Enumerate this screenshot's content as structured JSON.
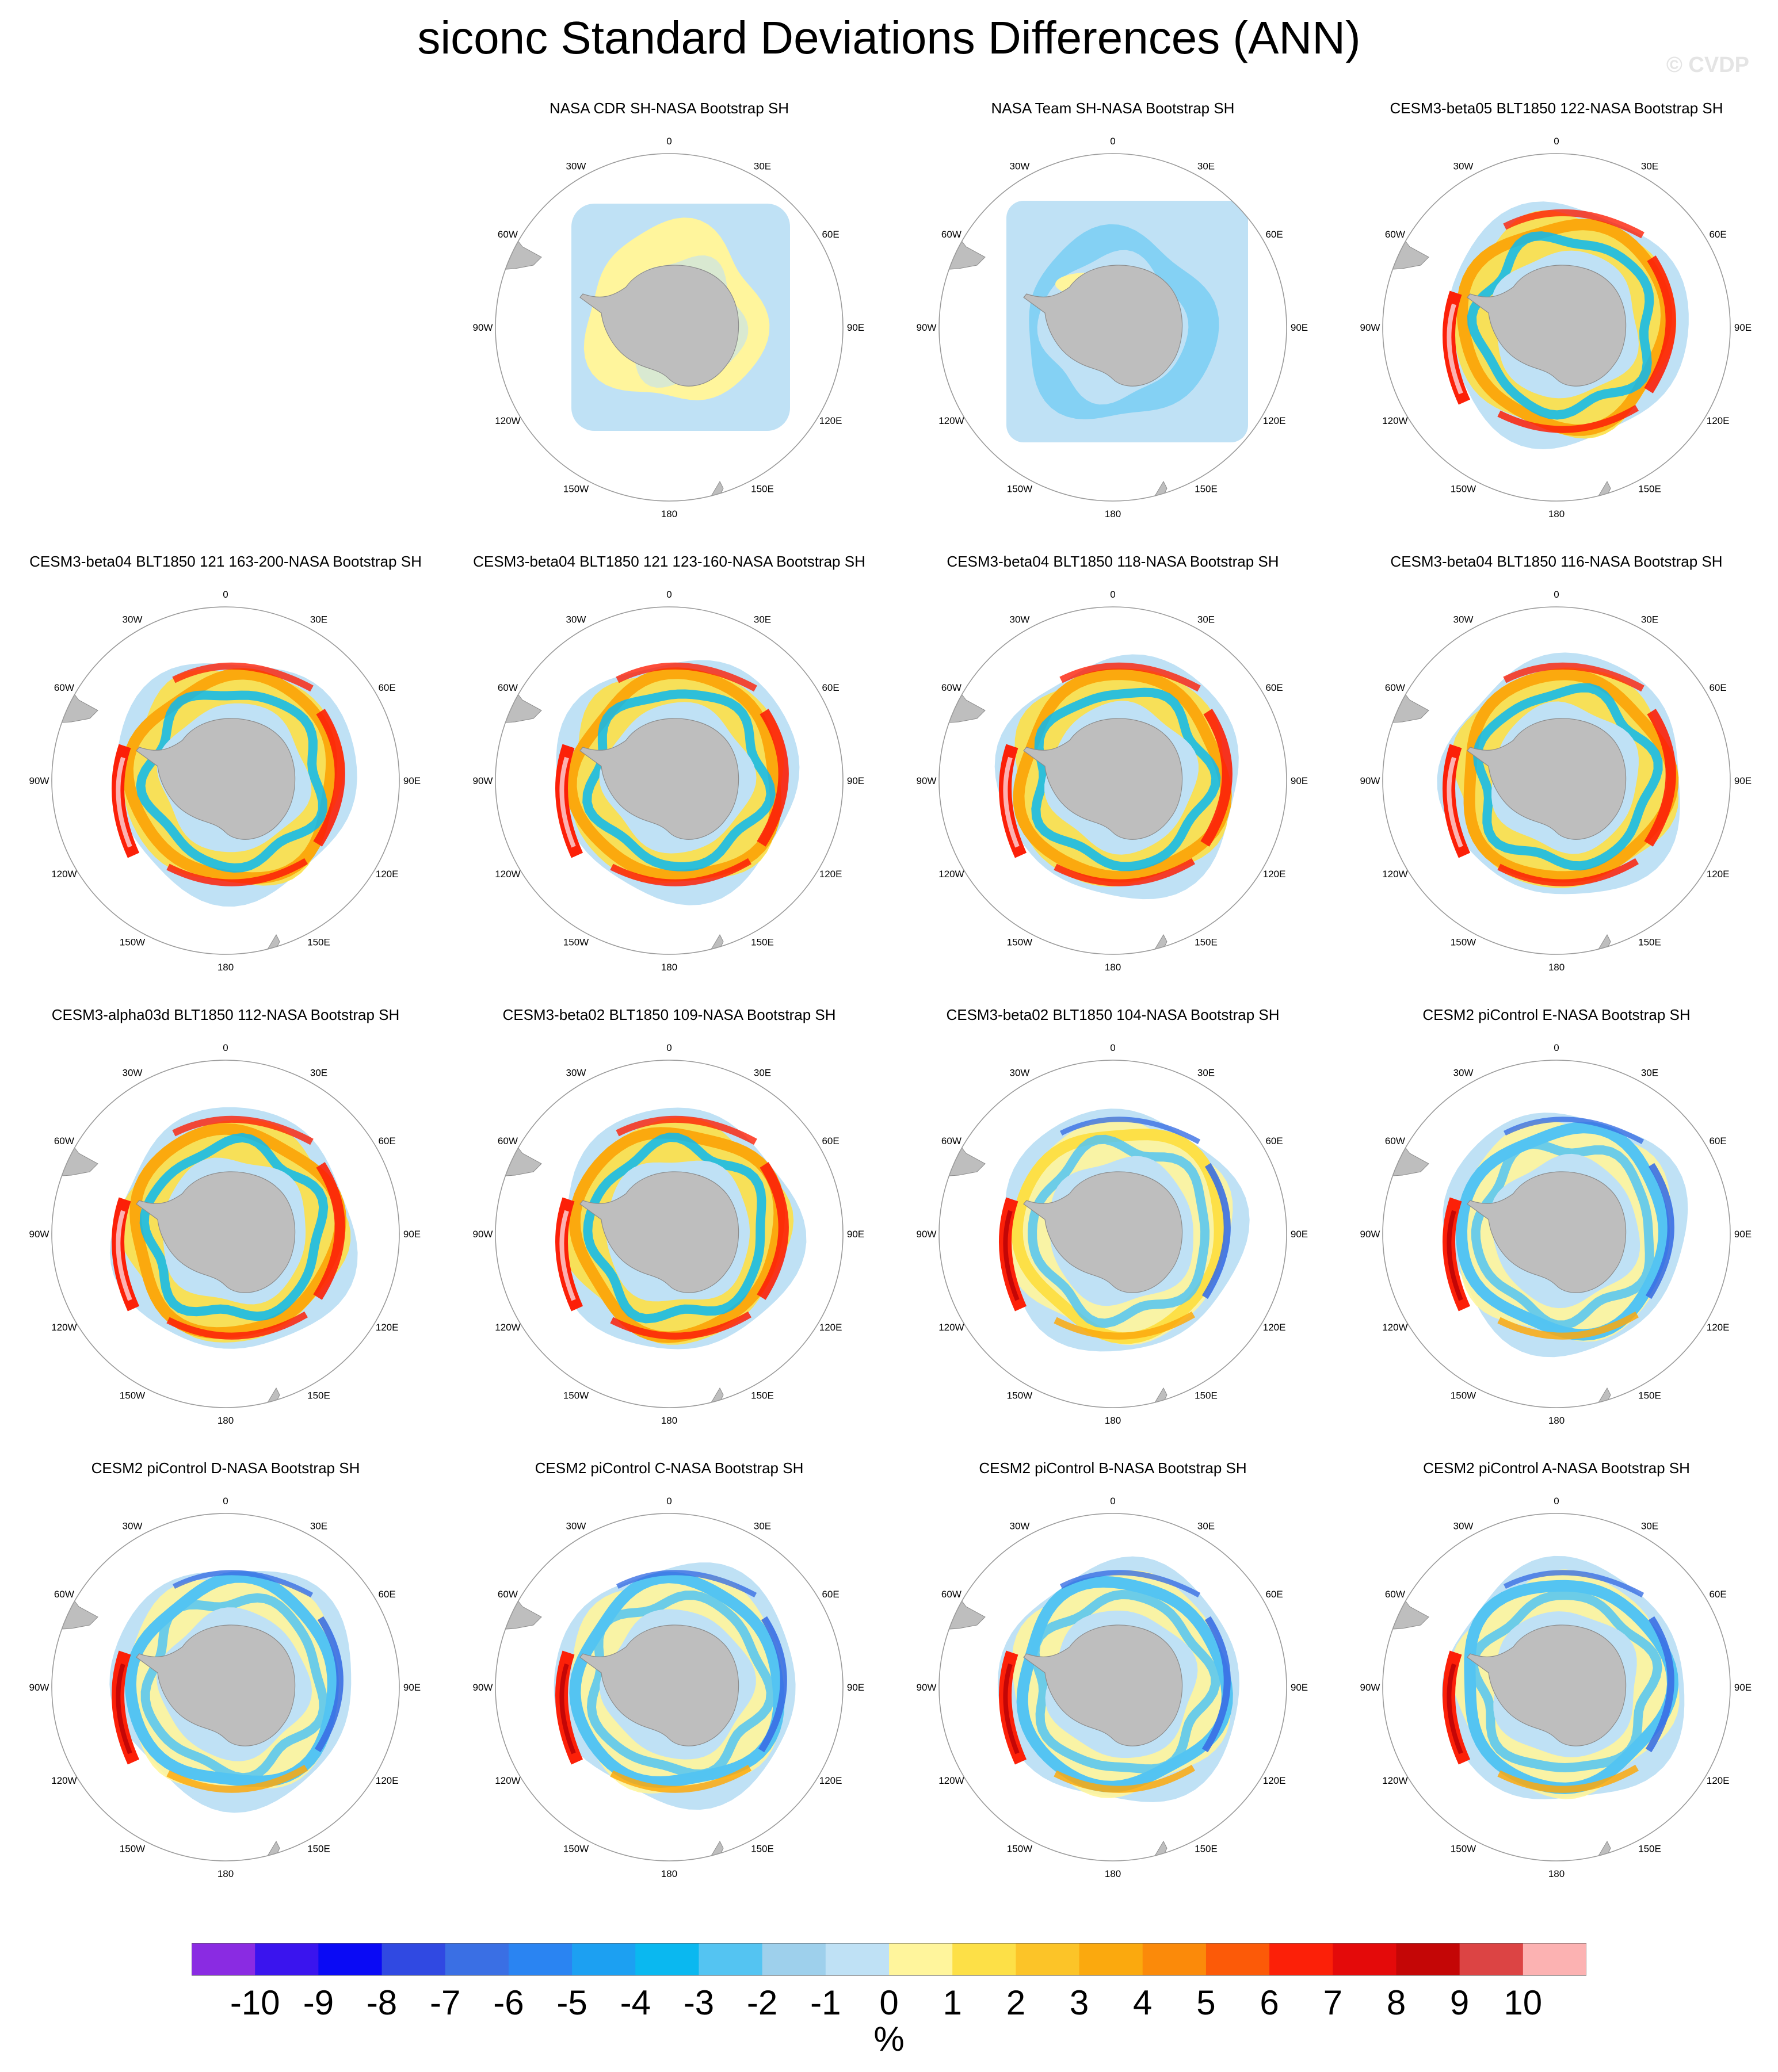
{
  "title": "siconc Standard Deviations Differences (ANN)",
  "watermark": "© CVDP",
  "longitude_labels": [
    "0",
    "30E",
    "60E",
    "90E",
    "120E",
    "150E",
    "180",
    "150W",
    "120W",
    "90W",
    "60W",
    "30W"
  ],
  "panels": [
    {
      "title": "NASA CDR SH-NASA Bootstrap SH",
      "pattern": "cdr"
    },
    {
      "title": "NASA Team SH-NASA Bootstrap SH",
      "pattern": "team"
    },
    {
      "title": "CESM3-beta05 BLT1850 122-NASA Bootstrap SH",
      "pattern": "warm"
    },
    {
      "title": "CESM3-beta04 BLT1850 121 163-200-NASA Bootstrap SH",
      "pattern": "warm"
    },
    {
      "title": "CESM3-beta04 BLT1850 121 123-160-NASA Bootstrap SH",
      "pattern": "warm"
    },
    {
      "title": "CESM3-beta04 BLT1850 118-NASA Bootstrap SH",
      "pattern": "warm"
    },
    {
      "title": "CESM3-beta04 BLT1850 116-NASA Bootstrap SH",
      "pattern": "warm"
    },
    {
      "title": "CESM3-alpha03d BLT1850 112-NASA Bootstrap SH",
      "pattern": "warm"
    },
    {
      "title": "CESM3-beta02 BLT1850 109-NASA Bootstrap SH",
      "pattern": "warm"
    },
    {
      "title": "CESM3-beta02 BLT1850 104-NASA Bootstrap SH",
      "pattern": "mixed"
    },
    {
      "title": "CESM2 piControl E-NASA Bootstrap SH",
      "pattern": "cool"
    },
    {
      "title": "CESM2 piControl D-NASA Bootstrap SH",
      "pattern": "cool"
    },
    {
      "title": "CESM2 piControl C-NASA Bootstrap SH",
      "pattern": "cool"
    },
    {
      "title": "CESM2 piControl B-NASA Bootstrap SH",
      "pattern": "cool"
    },
    {
      "title": "CESM2 piControl A-NASA Bootstrap SH",
      "pattern": "cool"
    }
  ],
  "colorbar": {
    "tick_labels": [
      "-10",
      "-9",
      "-8",
      "-7",
      "-6",
      "-5",
      "-4",
      "-3",
      "-2",
      "-1",
      "0",
      "1",
      "2",
      "3",
      "4",
      "5",
      "6",
      "7",
      "8",
      "9",
      "10"
    ],
    "colors": [
      "#8a2be2",
      "#3a14ee",
      "#0a0af5",
      "#3049e2",
      "#3a6fe4",
      "#2a84f2",
      "#1ca0f2",
      "#0ab8f0",
      "#54c4f2",
      "#9ed0ec",
      "#bfe1f5",
      "#fff59c",
      "#fde047",
      "#fcc428",
      "#fba90e",
      "#fb8a0a",
      "#fc5a08",
      "#fc2008",
      "#e40a0a",
      "#c40606",
      "#dc4444",
      "#fcb2b2"
    ],
    "units": "%"
  },
  "colors": {
    "land": "#bebebe",
    "land_edge": "#8c8c8c",
    "circle": "#9a9a9a"
  }
}
